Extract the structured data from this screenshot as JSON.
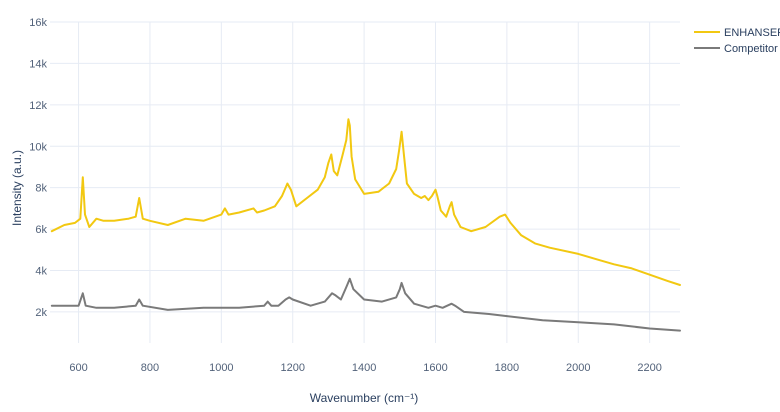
{
  "chart_data": {
    "type": "line",
    "title": "",
    "xlabel": "Wavenumber (cm⁻¹)",
    "ylabel": "Intensity (a.u.)",
    "xlim": [
      520,
      2285
    ],
    "ylim": [
      500,
      16000
    ],
    "xticks": [
      600,
      800,
      1000,
      1200,
      1400,
      1600,
      1800,
      2000,
      2200
    ],
    "yticks": [
      2000,
      4000,
      6000,
      8000,
      10000,
      12000,
      14000,
      16000
    ],
    "xtick_labels": [
      "600",
      "800",
      "1000",
      "1200",
      "1400",
      "1600",
      "1800",
      "2000",
      "2200"
    ],
    "ytick_labels": [
      "2k",
      "4k",
      "6k",
      "8k",
      "10k",
      "12k",
      "14k",
      "16k"
    ],
    "grid": true,
    "legend_position": "top-right",
    "series": [
      {
        "name": "ENHANSERS",
        "color": "#f2c811",
        "x": [
          525,
          560,
          590,
          605,
          612,
          618,
          630,
          650,
          670,
          700,
          740,
          760,
          770,
          780,
          800,
          850,
          900,
          950,
          1000,
          1010,
          1020,
          1050,
          1090,
          1100,
          1120,
          1150,
          1170,
          1185,
          1195,
          1210,
          1240,
          1270,
          1290,
          1300,
          1308,
          1315,
          1325,
          1340,
          1350,
          1356,
          1360,
          1365,
          1375,
          1400,
          1440,
          1470,
          1490,
          1498,
          1505,
          1512,
          1520,
          1540,
          1560,
          1570,
          1580,
          1590,
          1600,
          1605,
          1615,
          1630,
          1640,
          1645,
          1652,
          1670,
          1700,
          1740,
          1780,
          1795,
          1810,
          1840,
          1880,
          1920,
          2000,
          2060,
          2100,
          2150,
          2200,
          2250,
          2285
        ],
        "values": [
          5900,
          6200,
          6300,
          6500,
          8500,
          6700,
          6100,
          6500,
          6400,
          6400,
          6500,
          6600,
          7500,
          6500,
          6400,
          6200,
          6500,
          6400,
          6700,
          7000,
          6700,
          6800,
          7000,
          6800,
          6900,
          7100,
          7600,
          8200,
          7900,
          7100,
          7500,
          7900,
          8500,
          9200,
          9600,
          8800,
          8600,
          9600,
          10300,
          11300,
          11000,
          9500,
          8400,
          7700,
          7800,
          8200,
          8900,
          9800,
          10700,
          9500,
          8200,
          7700,
          7500,
          7600,
          7400,
          7600,
          7900,
          7600,
          6900,
          6600,
          7100,
          7300,
          6700,
          6100,
          5900,
          6100,
          6600,
          6700,
          6300,
          5700,
          5300,
          5100,
          4800,
          4500,
          4300,
          4100,
          3800,
          3500,
          3300
        ]
      },
      {
        "name": "Competitor",
        "color": "#7a7a7a",
        "x": [
          525,
          560,
          600,
          612,
          620,
          650,
          700,
          760,
          770,
          780,
          850,
          950,
          1050,
          1120,
          1130,
          1140,
          1160,
          1180,
          1190,
          1200,
          1250,
          1290,
          1310,
          1320,
          1335,
          1350,
          1360,
          1370,
          1400,
          1450,
          1490,
          1500,
          1505,
          1515,
          1540,
          1580,
          1600,
          1620,
          1645,
          1655,
          1680,
          1750,
          1800,
          1900,
          2000,
          2100,
          2200,
          2285
        ],
        "values": [
          2300,
          2300,
          2300,
          2900,
          2300,
          2200,
          2200,
          2300,
          2600,
          2300,
          2100,
          2200,
          2200,
          2300,
          2500,
          2300,
          2300,
          2600,
          2700,
          2600,
          2300,
          2500,
          2900,
          2800,
          2600,
          3200,
          3600,
          3100,
          2600,
          2500,
          2700,
          3100,
          3400,
          2900,
          2400,
          2200,
          2300,
          2200,
          2400,
          2300,
          2000,
          1900,
          1800,
          1600,
          1500,
          1400,
          1200,
          1100
        ]
      }
    ]
  }
}
